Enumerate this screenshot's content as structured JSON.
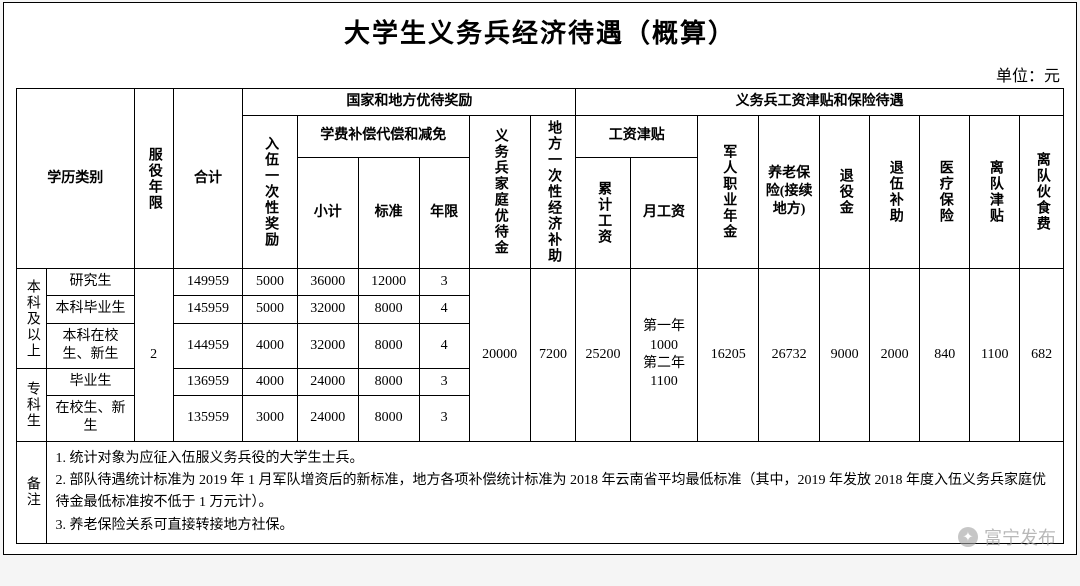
{
  "title": "大学生义务兵经济待遇（概算）",
  "unit": "单位：元",
  "headers": {
    "education_type": "学历类别",
    "service_years": "服役年限",
    "total": "合计",
    "national_local": "国家和地方优待奖励",
    "enlist_bonus": "入伍一次性奖励",
    "tuition_comp": "学费补偿代偿和减免",
    "subtotal": "小计",
    "standard": "标准",
    "years": "年限",
    "family_pref": "义务兵家庭优待金",
    "local_subsidy": "地方一次性经济补助",
    "military_pay": "义务兵工资津贴和保险待遇",
    "wage_allow": "工资津贴",
    "cum_wage": "累计工资",
    "monthly_wage": "月工资",
    "occ_annuity": "军人职业年金",
    "pension": "养老保险(接续地方)",
    "discharge": "退役金",
    "discharge_sub": "退伍补助",
    "medical": "医疗保险",
    "leave_allow": "离队津贴",
    "meal_fee": "离队伙食费"
  },
  "groups": {
    "undergrad_plus": "本科及以上",
    "junior": "专科生"
  },
  "rows": [
    {
      "sub": "研究生",
      "total": "149959",
      "bonus": "5000",
      "tsub": "36000",
      "tstd": "12000",
      "tyr": "3"
    },
    {
      "sub": "本科毕业生",
      "total": "145959",
      "bonus": "5000",
      "tsub": "32000",
      "tstd": "8000",
      "tyr": "4"
    },
    {
      "sub": "本科在校生、新生",
      "total": "144959",
      "bonus": "4000",
      "tsub": "32000",
      "tstd": "8000",
      "tyr": "4"
    },
    {
      "sub": "毕业生",
      "total": "136959",
      "bonus": "4000",
      "tsub": "24000",
      "tstd": "8000",
      "tyr": "3"
    },
    {
      "sub": "在校生、新生",
      "total": "135959",
      "bonus": "3000",
      "tsub": "24000",
      "tstd": "8000",
      "tyr": "3"
    }
  ],
  "shared": {
    "service_years": "2",
    "family_pref": "20000",
    "local_subsidy": "7200",
    "cum_wage": "25200",
    "monthly_wage": "第一年1000第二年1100",
    "occ_annuity": "16205",
    "pension": "26732",
    "discharge": "9000",
    "discharge_sub": "2000",
    "medical": "840",
    "leave_allow": "1100",
    "meal_fee": "682"
  },
  "notes_label": "备注",
  "notes": [
    "1. 统计对象为应征入伍服义务兵役的大学生士兵。",
    "2. 部队待遇统计标准为 2019 年 1 月军队增资后的新标准，地方各项补偿统计标准为 2018 年云南省平均最低标准（其中，2019 年发放 2018 年度入伍义务兵家庭优待金最低标准按不低于 1 万元计）。",
    "3. 养老保险关系可直接转接地方社保。"
  ],
  "watermark": "富宁发布",
  "colors": {
    "border": "#000000",
    "bg": "#ffffff",
    "watermark": "rgba(160,160,160,0.75)"
  }
}
